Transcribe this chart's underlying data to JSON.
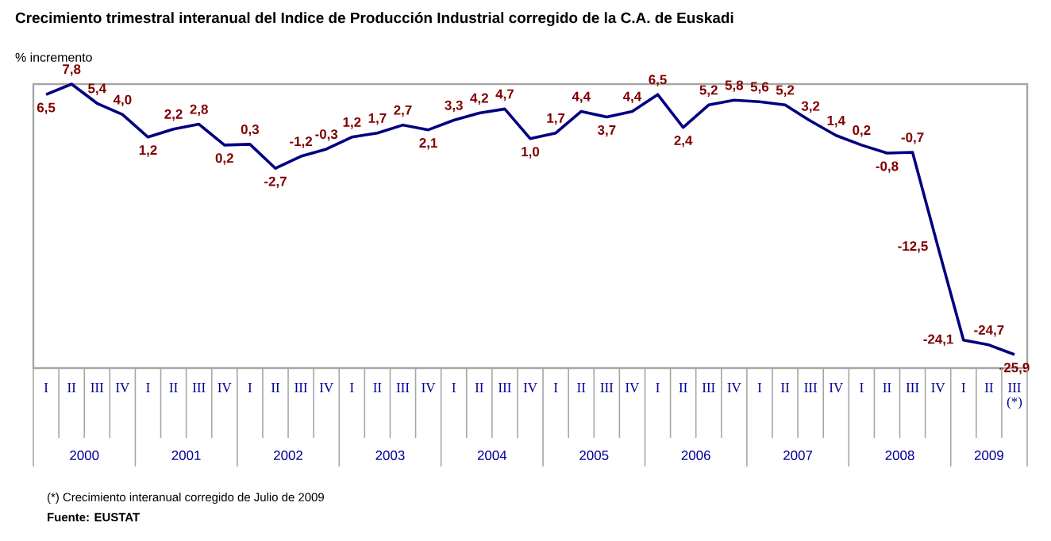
{
  "chart_data": {
    "type": "line",
    "title": "Crecimiento trimestral interanual del Indice de Producción Industrial corregido de la C.A. de Euskadi",
    "ylabel": "% incremento",
    "categories": [
      "I",
      "II",
      "III",
      "IV",
      "I",
      "II",
      "III",
      "IV",
      "I",
      "II",
      "III",
      "IV",
      "I",
      "II",
      "III",
      "IV",
      "I",
      "II",
      "III",
      "IV",
      "I",
      "II",
      "III",
      "IV",
      "I",
      "II",
      "III",
      "IV",
      "I",
      "II",
      "III",
      "IV",
      "I",
      "II",
      "III",
      "IV",
      "I",
      "II",
      "III (*)"
    ],
    "series": [
      {
        "color": "#000080",
        "values": [
          6.5,
          7.8,
          5.4,
          4.0,
          1.2,
          2.2,
          2.8,
          0.2,
          0.3,
          -2.7,
          -1.2,
          -0.3,
          1.2,
          1.7,
          2.7,
          2.1,
          3.3,
          4.2,
          4.7,
          1.0,
          1.7,
          4.4,
          3.7,
          4.4,
          6.5,
          2.4,
          5.2,
          5.8,
          5.6,
          5.2,
          3.2,
          1.4,
          0.2,
          -0.8,
          -0.7,
          -12.5,
          -24.1,
          -24.7,
          -25.9
        ],
        "value_labels": [
          "6,5",
          "7,8",
          "5,4",
          "4,0",
          "1,2",
          "2,2",
          "2,8",
          "0,2",
          "0,3",
          "-2,7",
          "-1,2",
          "-0,3",
          "1,2",
          "1,7",
          "2,7",
          "2,1",
          "3,3",
          "4,2",
          "4,7",
          "1,0",
          "1,7",
          "4,4",
          "3,7",
          "4,4",
          "6,5",
          "2,4",
          "5,2",
          "5,8",
          "5,6",
          "5,2",
          "3,2",
          "1,4",
          "0,2",
          "-0,8",
          "-0,7",
          "-12,5",
          "-24,1",
          "-24,7",
          "-25,9"
        ]
      }
    ],
    "annotations": [
      "2000",
      "2001",
      "2002",
      "2003",
      "2004",
      "2005",
      "2006",
      "2007",
      "2008",
      "2009",
      "(*) Crecimiento interanual corregido de Julio de 2009",
      "**Fuente: EUSTAT**"
    ],
    "grid": false,
    "marker": "none",
    "line_style": "solid"
  }
}
